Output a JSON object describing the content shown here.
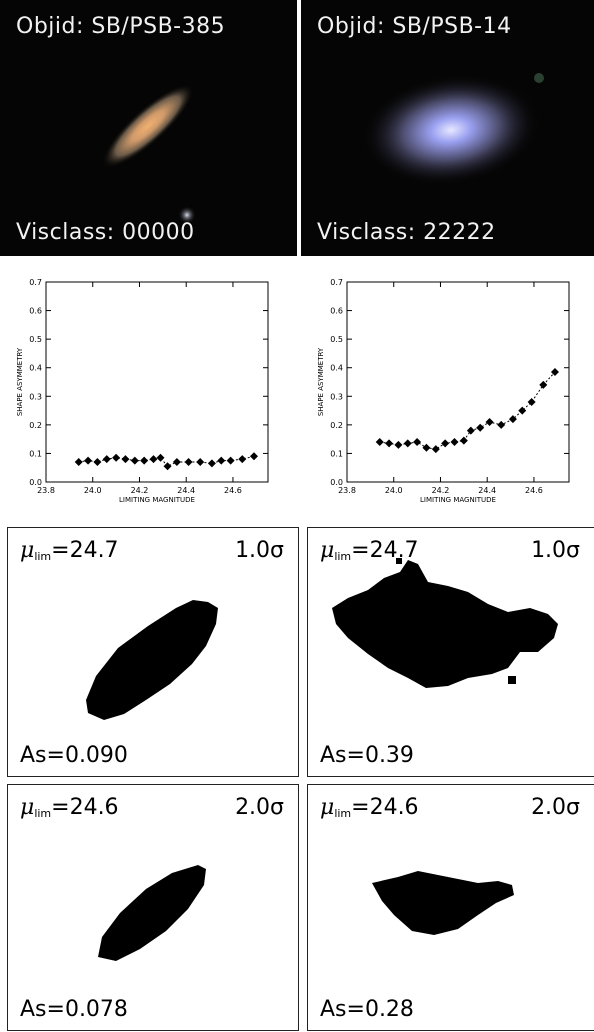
{
  "photos": [
    {
      "objid": "Objid: SB/PSB-385",
      "visclass": "Visclass: 00000"
    },
    {
      "objid": "Objid: SB/PSB-14",
      "visclass": "Visclass: 22222"
    }
  ],
  "chart_data": [
    {
      "type": "scatter",
      "xlabel": "LIMITING MAGNITUDE",
      "ylabel": "SHAPE ASYMMETRY",
      "xlim": [
        23.8,
        24.75
      ],
      "ylim": [
        0.0,
        0.7
      ],
      "xticks": [
        "23.8",
        "24.0",
        "24.2",
        "24.4",
        "24.6"
      ],
      "yticks": [
        "0.0",
        "0.1",
        "0.2",
        "0.3",
        "0.4",
        "0.5",
        "0.6",
        "0.7"
      ],
      "x": [
        23.94,
        23.98,
        24.02,
        24.06,
        24.1,
        24.14,
        24.18,
        24.22,
        24.26,
        24.29,
        24.32,
        24.36,
        24.41,
        24.46,
        24.51,
        24.55,
        24.59,
        24.64,
        24.69
      ],
      "y": [
        0.07,
        0.075,
        0.07,
        0.08,
        0.085,
        0.08,
        0.075,
        0.075,
        0.08,
        0.085,
        0.055,
        0.07,
        0.07,
        0.07,
        0.065,
        0.075,
        0.075,
        0.08,
        0.09
      ]
    },
    {
      "type": "scatter",
      "xlabel": "LIMITING MAGNITUDE",
      "ylabel": "SHAPE ASYMMETRY",
      "xlim": [
        23.8,
        24.75
      ],
      "ylim": [
        0.0,
        0.7
      ],
      "xticks": [
        "23.8",
        "24.0",
        "24.2",
        "24.4",
        "24.6"
      ],
      "yticks": [
        "0.0",
        "0.1",
        "0.2",
        "0.3",
        "0.4",
        "0.5",
        "0.6",
        "0.7"
      ],
      "x": [
        23.94,
        23.98,
        24.02,
        24.06,
        24.1,
        24.14,
        24.18,
        24.22,
        24.26,
        24.3,
        24.33,
        24.37,
        24.41,
        24.46,
        24.51,
        24.55,
        24.59,
        24.64,
        24.69
      ],
      "y": [
        0.14,
        0.135,
        0.13,
        0.135,
        0.14,
        0.12,
        0.115,
        0.135,
        0.14,
        0.145,
        0.18,
        0.19,
        0.21,
        0.2,
        0.22,
        0.25,
        0.28,
        0.34,
        0.385
      ]
    }
  ],
  "masks": [
    {
      "mu_value": "=24.7",
      "sigma": "1.0σ",
      "as": "As=0.090"
    },
    {
      "mu_value": "=24.7",
      "sigma": "1.0σ",
      "as": "As=0.39"
    },
    {
      "mu_value": "=24.6",
      "sigma": "2.0σ",
      "as": "As=0.078"
    },
    {
      "mu_value": "=24.6",
      "sigma": "2.0σ",
      "as": "As=0.28"
    }
  ],
  "mu_symbol": "μ",
  "mu_subscript": "lim"
}
